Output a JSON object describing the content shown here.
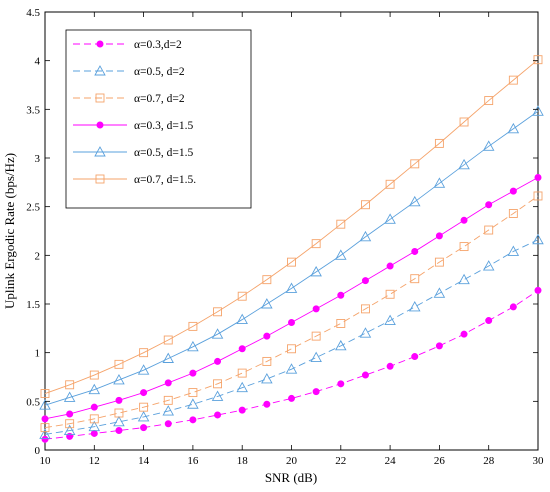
{
  "chart_data": {
    "type": "line",
    "title": "",
    "xlabel": "SNR (dB)",
    "ylabel": "Uplink Ergodic Rate (bps/Hz)",
    "xlim": [
      10,
      30
    ],
    "ylim": [
      0,
      4.5
    ],
    "x_ticks": [
      "10",
      "12",
      "14",
      "16",
      "18",
      "20",
      "22",
      "24",
      "26",
      "28",
      "30"
    ],
    "y_ticks": [
      "0",
      "0.5",
      "1",
      "1.5",
      "2",
      "2.5",
      "3",
      "3.5",
      "4",
      "4.5"
    ],
    "grid": false,
    "legend_position": "top-left",
    "x": [
      10,
      11,
      12,
      13,
      14,
      15,
      16,
      17,
      18,
      19,
      20,
      21,
      22,
      23,
      24,
      25,
      26,
      27,
      28,
      29,
      30
    ],
    "series": [
      {
        "name": "α=0.3,d=2",
        "color": "#ff00ff",
        "marker": "dot",
        "line": "dashed",
        "values": [
          0.11,
          0.14,
          0.17,
          0.2,
          0.23,
          0.27,
          0.31,
          0.36,
          0.41,
          0.47,
          0.53,
          0.6,
          0.68,
          0.77,
          0.86,
          0.96,
          1.07,
          1.19,
          1.33,
          1.47,
          1.64
        ]
      },
      {
        "name": "α=0.5, d=2",
        "color": "#5aa0dc",
        "marker": "triangle",
        "line": "dashed",
        "values": [
          0.16,
          0.2,
          0.24,
          0.29,
          0.34,
          0.4,
          0.47,
          0.55,
          0.64,
          0.73,
          0.83,
          0.95,
          1.07,
          1.2,
          1.33,
          1.47,
          1.61,
          1.75,
          1.89,
          2.04,
          2.16
        ]
      },
      {
        "name": "α=0.7, d=2",
        "color": "#f5a36a",
        "marker": "square",
        "line": "dashed",
        "values": [
          0.23,
          0.27,
          0.32,
          0.38,
          0.44,
          0.51,
          0.59,
          0.68,
          0.79,
          0.91,
          1.04,
          1.17,
          1.3,
          1.45,
          1.6,
          1.76,
          1.93,
          2.09,
          2.26,
          2.43,
          2.61
        ]
      },
      {
        "name": "α=0.3, d=1.5",
        "color": "#ff00ff",
        "marker": "dot",
        "line": "solid",
        "values": [
          0.32,
          0.37,
          0.44,
          0.51,
          0.59,
          0.69,
          0.79,
          0.91,
          1.04,
          1.17,
          1.31,
          1.45,
          1.59,
          1.74,
          1.89,
          2.04,
          2.2,
          2.36,
          2.52,
          2.66,
          2.8
        ]
      },
      {
        "name": "α=0.5, d=1.5",
        "color": "#5aa0dc",
        "marker": "triangle",
        "line": "solid",
        "values": [
          0.46,
          0.54,
          0.62,
          0.72,
          0.82,
          0.94,
          1.06,
          1.19,
          1.34,
          1.5,
          1.66,
          1.83,
          2.0,
          2.19,
          2.37,
          2.55,
          2.74,
          2.93,
          3.12,
          3.3,
          3.48
        ]
      },
      {
        "name": "α=0.7, d=1.5.",
        "color": "#f5a36a",
        "marker": "square",
        "line": "solid",
        "values": [
          0.58,
          0.67,
          0.77,
          0.88,
          1.0,
          1.13,
          1.27,
          1.42,
          1.58,
          1.75,
          1.93,
          2.12,
          2.32,
          2.52,
          2.73,
          2.94,
          3.15,
          3.37,
          3.59,
          3.8,
          4.01
        ]
      }
    ]
  }
}
